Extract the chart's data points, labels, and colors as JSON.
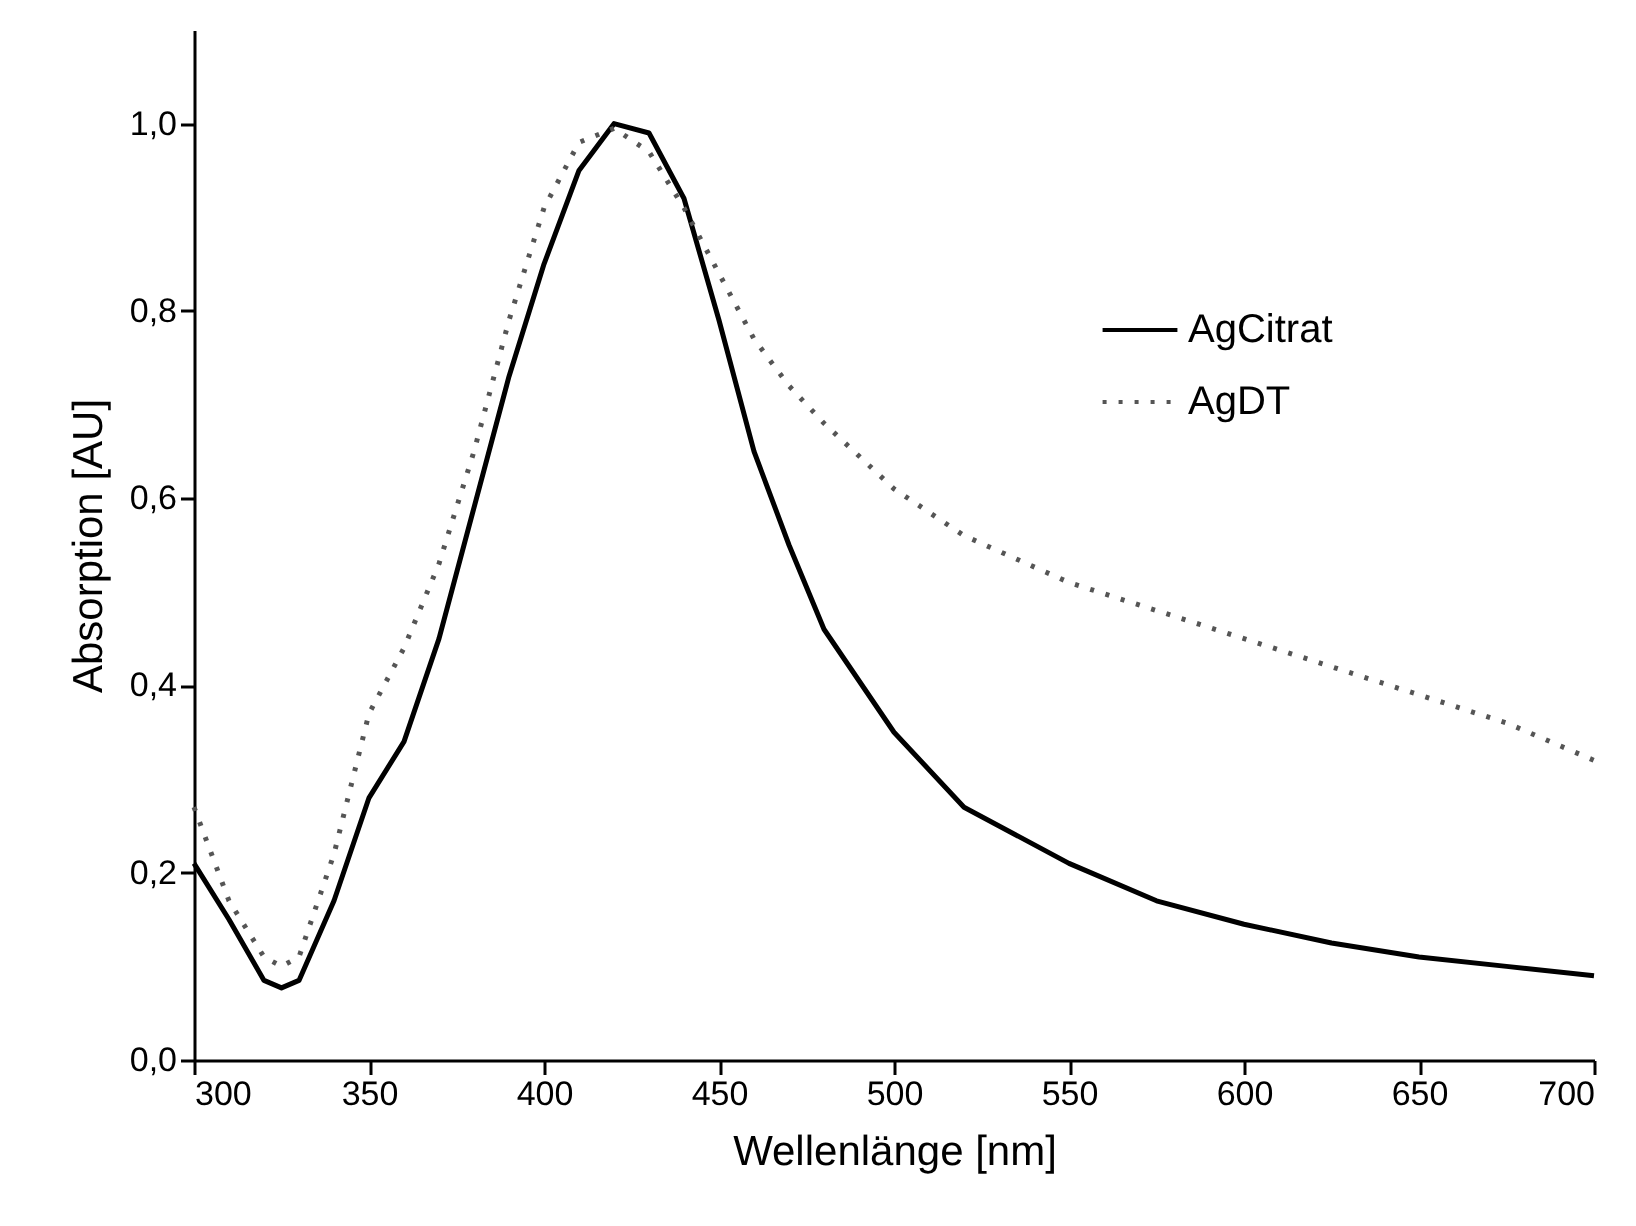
{
  "chart_data": {
    "type": "line",
    "xlabel": "Wellenlänge [nm]",
    "ylabel": "Absorption [AU]",
    "x": [
      300,
      310,
      320,
      325,
      330,
      340,
      350,
      360,
      370,
      380,
      390,
      400,
      410,
      420,
      430,
      440,
      450,
      460,
      470,
      480,
      500,
      520,
      550,
      575,
      600,
      625,
      650,
      675,
      700
    ],
    "series": [
      {
        "name": "AgCitrat",
        "color": "#000000",
        "line_style": "solid",
        "values": [
          0.21,
          0.15,
          0.085,
          0.077,
          0.085,
          0.17,
          0.28,
          0.34,
          0.45,
          0.59,
          0.73,
          0.85,
          0.95,
          1.0,
          0.99,
          0.92,
          0.79,
          0.65,
          0.55,
          0.46,
          0.35,
          0.27,
          0.21,
          0.17,
          0.145,
          0.125,
          0.11,
          0.1,
          0.09
        ]
      },
      {
        "name": "AgDT",
        "color": "#555555",
        "line_style": "dotted",
        "values": [
          0.27,
          0.17,
          0.11,
          0.1,
          0.11,
          0.22,
          0.37,
          0.44,
          0.53,
          0.65,
          0.79,
          0.91,
          0.98,
          0.995,
          0.97,
          0.91,
          0.84,
          0.77,
          0.72,
          0.68,
          0.61,
          0.56,
          0.51,
          0.48,
          0.45,
          0.42,
          0.39,
          0.36,
          0.32
        ]
      }
    ],
    "xlim": [
      300,
      700
    ],
    "xticks": [
      300,
      350,
      400,
      450,
      500,
      550,
      600,
      650,
      700
    ],
    "ylim": [
      0,
      1.1
    ],
    "yticks": [
      {
        "value": 0,
        "label": "0,0"
      },
      {
        "value": 0.2,
        "label": "0,2"
      },
      {
        "value": 0.4,
        "label": "0,4"
      },
      {
        "value": 0.6,
        "label": "0,6"
      },
      {
        "value": 0.8,
        "label": "0,8"
      },
      {
        "value": 1.0,
        "label": "1,0"
      }
    ],
    "grid": false,
    "legend": "top right"
  }
}
